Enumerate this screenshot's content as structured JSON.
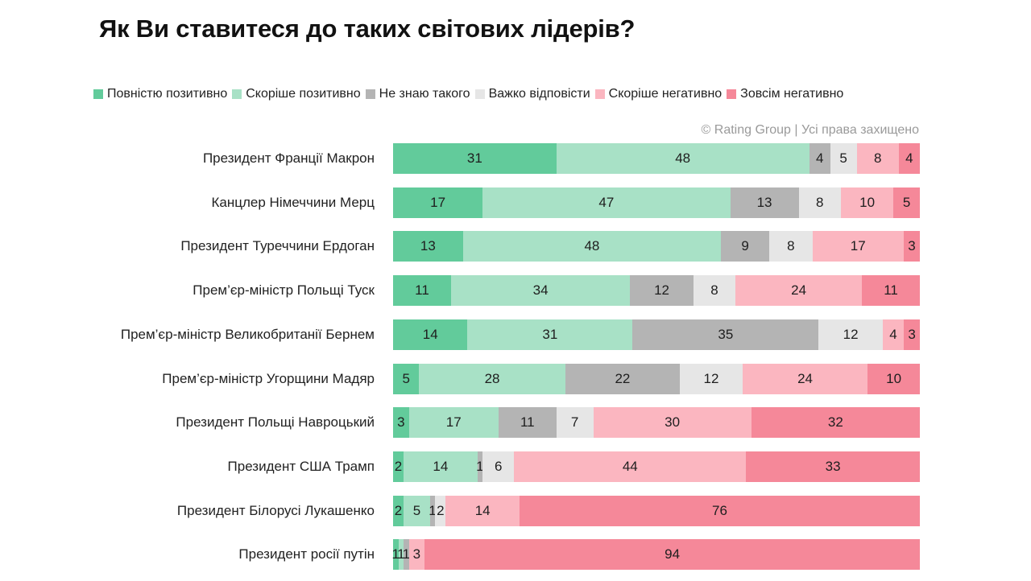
{
  "title": "Як Ви ставитеся до таких світових лідерів?",
  "copyright": "© Rating Group | Усі права захищено",
  "colors": {
    "full_positive": "#62cb9b",
    "rather_positive": "#a8e1c6",
    "dont_know": "#b4b4b4",
    "hard_to_say": "#e6e6e6",
    "rather_negative": "#fbb6c0",
    "fully_negative": "#f58899"
  },
  "chart_data": {
    "type": "bar",
    "orientation": "horizontal",
    "stacked": "percent",
    "legend_position": "top",
    "grid": false,
    "categories": [
      "Президент Франції Макрон",
      "Канцлер Німеччини Мерц",
      "Президент Туреччини Ердоган",
      "Прем’єр-міністр Польщі Туск",
      "Прем’єр-міністр Великобританії Бернем",
      "Прем’єр-міністр Угорщини Мадяр",
      "Президент Польщі Навроцький",
      "Президент США Трамп",
      "Президент Білорусі Лукашенко",
      "Президент росії путін"
    ],
    "series": [
      {
        "name": "Повністю позитивно",
        "color": "#62cb9b",
        "values": [
          31,
          17,
          13,
          11,
          14,
          5,
          3,
          2,
          2,
          1
        ]
      },
      {
        "name": "Скоріше позитивно",
        "color": "#a8e1c6",
        "values": [
          48,
          47,
          48,
          34,
          31,
          28,
          17,
          14,
          5,
          1
        ]
      },
      {
        "name": "Не знаю такого",
        "color": "#b4b4b4",
        "values": [
          4,
          13,
          9,
          12,
          35,
          22,
          11,
          1,
          1,
          1
        ]
      },
      {
        "name": "Важко відповісти",
        "color": "#e6e6e6",
        "values": [
          5,
          8,
          8,
          8,
          12,
          12,
          7,
          6,
          2,
          0
        ]
      },
      {
        "name": "Скоріше негативно",
        "color": "#fbb6c0",
        "values": [
          8,
          10,
          17,
          24,
          4,
          24,
          30,
          44,
          14,
          3
        ]
      },
      {
        "name": "Зовсім негативно",
        "color": "#f58899",
        "values": [
          4,
          5,
          3,
          11,
          3,
          10,
          32,
          33,
          76,
          94
        ]
      }
    ]
  }
}
